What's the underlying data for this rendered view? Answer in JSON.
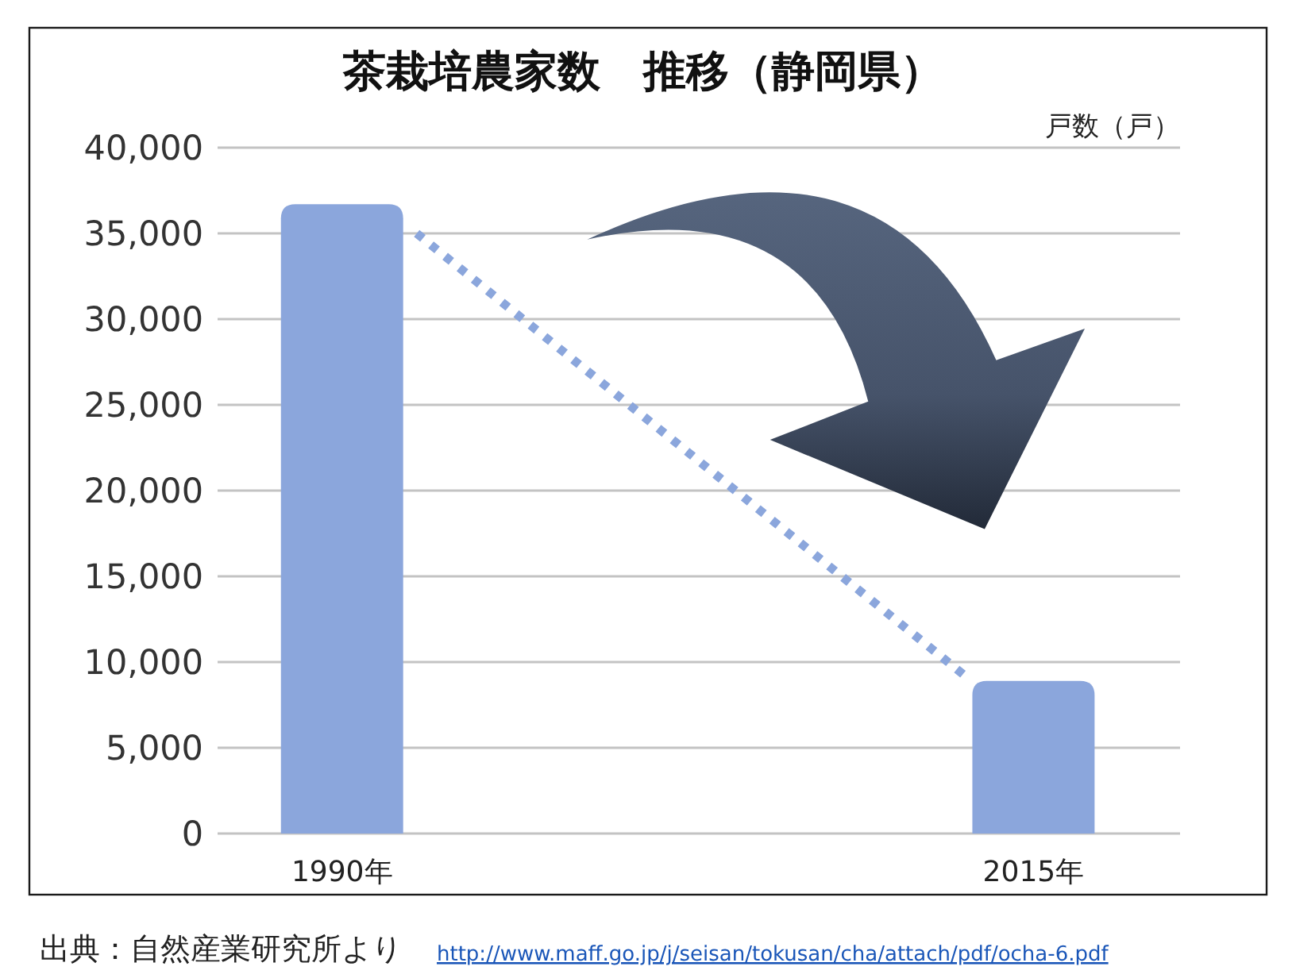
{
  "chart_data": {
    "type": "bar",
    "title": "茶栽培農家数　推移（静岡県）",
    "ylabel": "戸数（戸）",
    "x": [
      1990,
      2015
    ],
    "series": [
      {
        "color": "#8ba6dc",
        "values": [
          36700,
          8900
        ]
      },
      {
        "type": "line",
        "color": "#8ba6dc",
        "line_style": "dotted",
        "x": [
          1992.7,
          2012.6
        ],
        "values": [
          35000,
          9100
        ]
      }
    ],
    "xlim": [
      1985.5,
      2020.3
    ],
    "xticks": [
      {
        "value": 1990,
        "label": "1990年"
      },
      {
        "value": 2015,
        "label": "2015年"
      }
    ],
    "ylim": [
      0,
      40000
    ],
    "yticks": [
      0,
      {
        "value": 5000,
        "label": "5,000"
      },
      {
        "value": 10000,
        "label": "10,000"
      },
      {
        "value": 15000,
        "label": "15,000"
      },
      {
        "value": 20000,
        "label": "20,000"
      },
      {
        "value": 25000,
        "label": "25,000"
      },
      {
        "value": 30000,
        "label": "30,000"
      },
      {
        "value": 35000,
        "label": "35,000"
      },
      {
        "value": 40000,
        "label": "40,000"
      }
    ],
    "grid": "y",
    "annotations": [
      "出典：自然産業研究所より",
      "http://www.maff.go.jp/j/seisan/tokusan/cha/attach/pdf/ocha-6.pdf"
    ]
  }
}
